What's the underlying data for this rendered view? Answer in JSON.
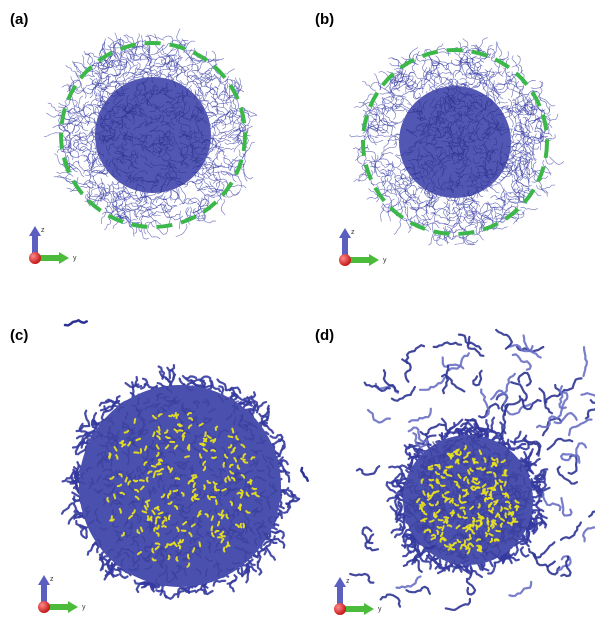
{
  "panels": [
    {
      "label": "(a)",
      "axis_z": "z",
      "axis_y": "y"
    },
    {
      "label": "(b)",
      "axis_z": "z",
      "axis_y": "y"
    },
    {
      "label": "(c)",
      "axis_z": "z",
      "axis_y": "y"
    },
    {
      "label": "(d)",
      "axis_z": "z",
      "axis_y": "y"
    }
  ]
}
